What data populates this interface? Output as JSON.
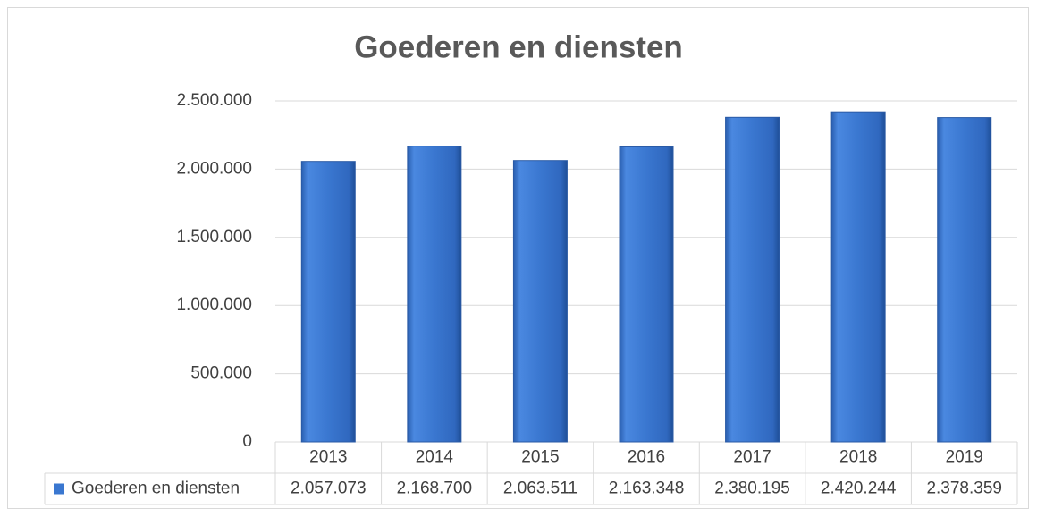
{
  "chart_data": {
    "type": "bar",
    "title": "Goederen en diensten",
    "categories": [
      "2013",
      "2014",
      "2015",
      "2016",
      "2017",
      "2018",
      "2019"
    ],
    "series": [
      {
        "name": "Goederen en diensten",
        "color": "#3a77d0",
        "values": [
          2057073,
          2168700,
          2063511,
          2163348,
          2380195,
          2420244,
          2378359
        ],
        "value_labels": [
          "2.057.073",
          "2.168.700",
          "2.063.511",
          "2.163.348",
          "2.380.195",
          "2.420.244",
          "2.378.359"
        ]
      }
    ],
    "ylim": [
      0,
      2500000
    ],
    "yticks": [
      0,
      {
        "value": 500000,
        "label": "500.000"
      },
      {
        "value": 1000000,
        "label": "1.000.000"
      },
      {
        "value": 1500000,
        "label": "1.500.000"
      },
      {
        "value": 2000000,
        "label": "2.000.000"
      },
      {
        "value": 2500000,
        "label": "2.500.000"
      }
    ],
    "grid": true
  }
}
